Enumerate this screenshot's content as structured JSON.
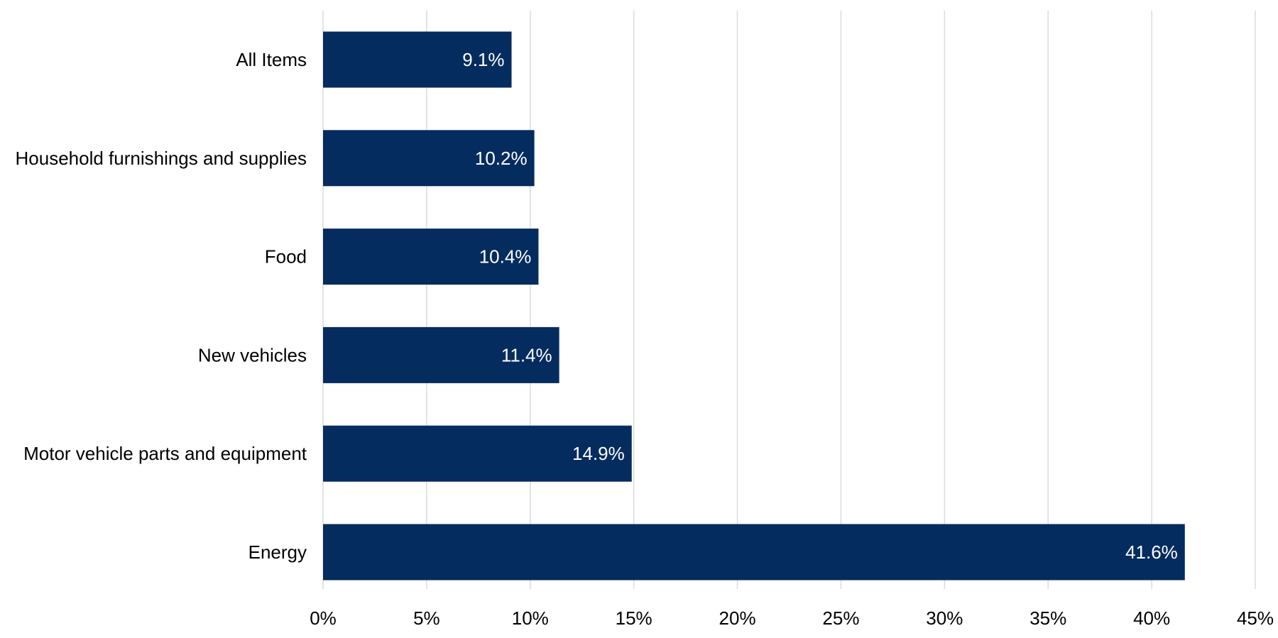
{
  "chart_data": {
    "type": "bar",
    "orientation": "horizontal",
    "categories": [
      "All Items",
      "Household furnishings and supplies",
      "Food",
      "New vehicles",
      "Motor vehicle parts and equipment",
      "Energy"
    ],
    "values": [
      9.1,
      10.2,
      10.4,
      11.4,
      14.9,
      41.6
    ],
    "data_labels": [
      "9.1%",
      "10.2%",
      "10.4%",
      "11.4%",
      "14.9%",
      "41.6%"
    ],
    "x_ticks": [
      0,
      5,
      10,
      15,
      20,
      25,
      30,
      35,
      40,
      45
    ],
    "x_tick_labels": [
      "0%",
      "5%",
      "10%",
      "15%",
      "20%",
      "25%",
      "30%",
      "35%",
      "40%",
      "45%"
    ],
    "xlim": [
      0,
      45
    ],
    "grid": "vertical",
    "legend": "none",
    "title": "",
    "xlabel": "",
    "ylabel": "",
    "colors": {
      "bar": "#052c5e",
      "data_label": "#ffffff",
      "grid": "#dcdcdc",
      "text": "#000000",
      "background": "#ffffff"
    }
  }
}
